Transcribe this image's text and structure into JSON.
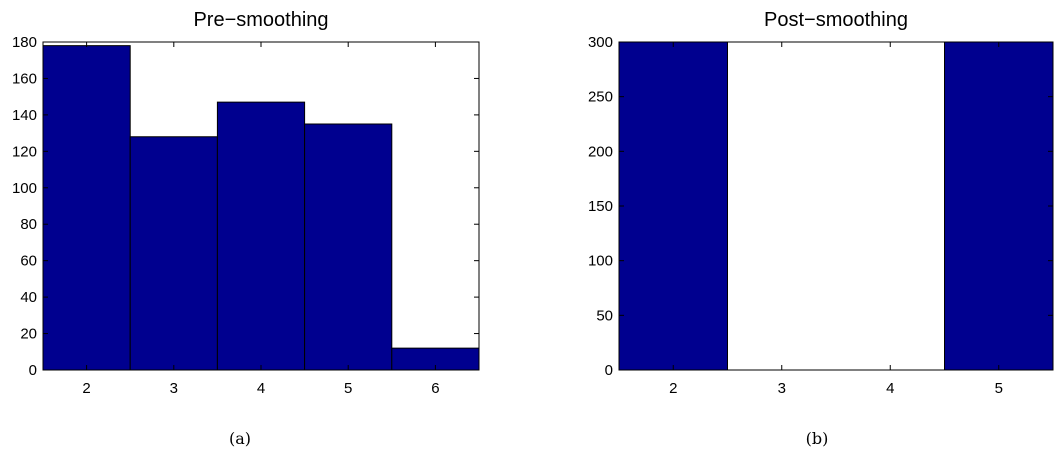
{
  "chart_data": [
    {
      "type": "bar",
      "title": "Pre−smoothing",
      "caption": "(a)",
      "categories": [
        "2",
        "3",
        "4",
        "5",
        "6"
      ],
      "values": [
        178,
        128,
        147,
        135,
        12
      ],
      "xlim": [
        1.5,
        6.5
      ],
      "ylim": [
        0,
        180
      ],
      "yticks": [
        "0",
        "20",
        "40",
        "60",
        "80",
        "100",
        "120",
        "140",
        "160",
        "180"
      ],
      "grid": false,
      "bar_color": "#00008F"
    },
    {
      "type": "bar",
      "title": "Post−smoothing",
      "caption": "(b)",
      "categories": [
        "2",
        "3",
        "4",
        "5"
      ],
      "values": [
        300,
        0,
        0,
        300
      ],
      "xlim": [
        1.5,
        5.5
      ],
      "ylim": [
        0,
        300
      ],
      "yticks": [
        "0",
        "50",
        "100",
        "150",
        "200",
        "250",
        "300"
      ],
      "grid": false,
      "bar_color": "#00008F"
    }
  ]
}
